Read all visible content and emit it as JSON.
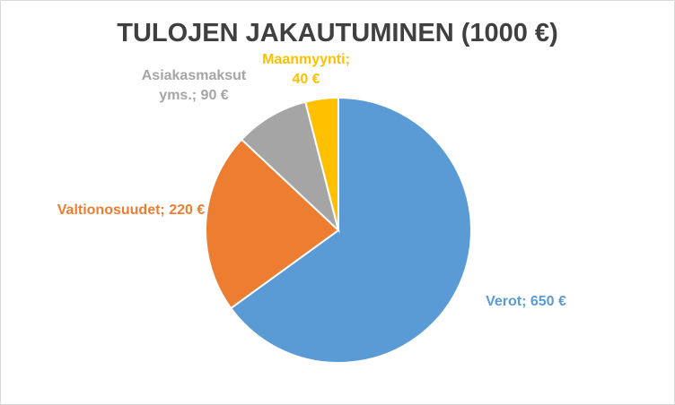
{
  "chart_data": {
    "type": "pie",
    "title": "TULOJEN JAKAUTUMINEN (1000 €)",
    "categories": [
      "Verot",
      "Valtionosuudet",
      "Asiakasmaksut yms.",
      "Maanmyynti"
    ],
    "values": [
      650,
      220,
      90,
      40
    ],
    "value_labels": [
      "650 €",
      "220 €",
      "90 €",
      "40 €"
    ],
    "label_separator": ";",
    "colors": [
      "#5b9bd5",
      "#ed7d31",
      "#a5a5a5",
      "#ffc000"
    ],
    "start_angle": 0,
    "direction": "clockwise"
  }
}
